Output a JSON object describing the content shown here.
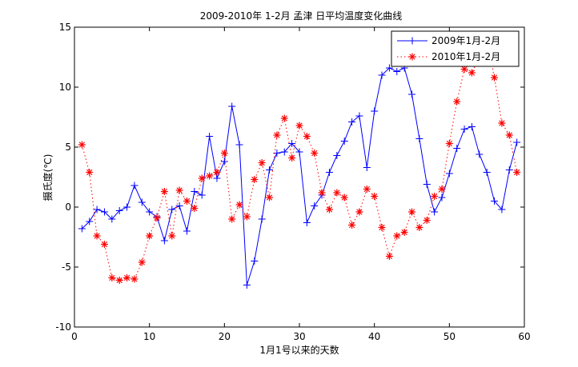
{
  "chart_data": {
    "type": "line",
    "title": "2009-2010年 1-2月 孟津 日平均温度变化曲线",
    "xlabel": "1月1号以来的天数",
    "ylabel": "摄氏度(℃)",
    "xlim": [
      0,
      60
    ],
    "ylim": [
      -10,
      15
    ],
    "xticks": [
      0,
      10,
      20,
      30,
      40,
      50,
      60
    ],
    "yticks": [
      -10,
      -5,
      0,
      5,
      10,
      15
    ],
    "grid": false,
    "legend_position": "top-right",
    "series": [
      {
        "name": "2009年1月-2月",
        "color": "#0000ff",
        "line_style": "solid",
        "marker": "plus",
        "x": [
          1,
          2,
          3,
          4,
          5,
          6,
          7,
          8,
          9,
          10,
          11,
          12,
          13,
          14,
          15,
          16,
          17,
          18,
          19,
          20,
          21,
          22,
          23,
          24,
          25,
          26,
          27,
          28,
          29,
          30,
          31,
          32,
          33,
          34,
          35,
          36,
          37,
          38,
          39,
          40,
          41,
          42,
          43,
          44,
          45,
          46,
          47,
          48,
          49,
          50,
          51,
          52,
          53,
          54,
          55,
          56,
          57,
          58,
          59
        ],
        "y": [
          -1.8,
          -1.2,
          -0.2,
          -0.4,
          -1.0,
          -0.3,
          0.0,
          1.8,
          0.4,
          -0.4,
          -0.8,
          -2.8,
          -0.2,
          0.1,
          -2.0,
          1.3,
          1.0,
          5.9,
          2.4,
          3.8,
          8.4,
          5.2,
          -6.5,
          -4.5,
          -1.0,
          3.1,
          4.5,
          4.6,
          5.3,
          4.6,
          -1.3,
          0.1,
          1.0,
          2.9,
          4.3,
          5.5,
          7.1,
          7.6,
          3.3,
          8.0,
          11.0,
          11.6,
          11.3,
          11.6,
          9.4,
          5.7,
          1.9,
          -0.4,
          0.8,
          2.8,
          4.9,
          6.5,
          6.7,
          4.4,
          2.9,
          0.5,
          -0.2,
          3.1,
          5.4
        ]
      },
      {
        "name": "2010年1月-2月",
        "color": "#ff0000",
        "line_style": "dotted",
        "marker": "star",
        "x": [
          1,
          2,
          3,
          4,
          5,
          6,
          7,
          8,
          9,
          10,
          11,
          12,
          13,
          14,
          15,
          16,
          17,
          18,
          19,
          20,
          21,
          22,
          23,
          24,
          25,
          26,
          27,
          28,
          29,
          30,
          31,
          32,
          33,
          34,
          35,
          36,
          37,
          38,
          39,
          40,
          41,
          42,
          43,
          44,
          45,
          46,
          47,
          48,
          49,
          50,
          51,
          52,
          53,
          54,
          55,
          56,
          57,
          58,
          59
        ],
        "y": [
          5.2,
          2.9,
          -2.4,
          -3.1,
          -5.9,
          -6.1,
          -5.9,
          -6.0,
          -4.6,
          -2.4,
          -0.9,
          1.3,
          -2.4,
          1.4,
          0.5,
          -0.1,
          2.4,
          2.6,
          2.9,
          4.5,
          -1.0,
          0.2,
          -0.8,
          2.3,
          3.7,
          0.8,
          6.0,
          7.4,
          4.1,
          6.8,
          5.9,
          4.5,
          1.2,
          -0.2,
          1.2,
          0.8,
          -1.5,
          -0.4,
          1.5,
          0.9,
          -1.7,
          -4.1,
          -2.4,
          -2.1,
          -0.4,
          -1.7,
          -1.1,
          0.9,
          1.5,
          5.3,
          8.8,
          11.5,
          11.2,
          12.5,
          14.0,
          10.8,
          7.0,
          6.0,
          2.9
        ]
      }
    ]
  }
}
